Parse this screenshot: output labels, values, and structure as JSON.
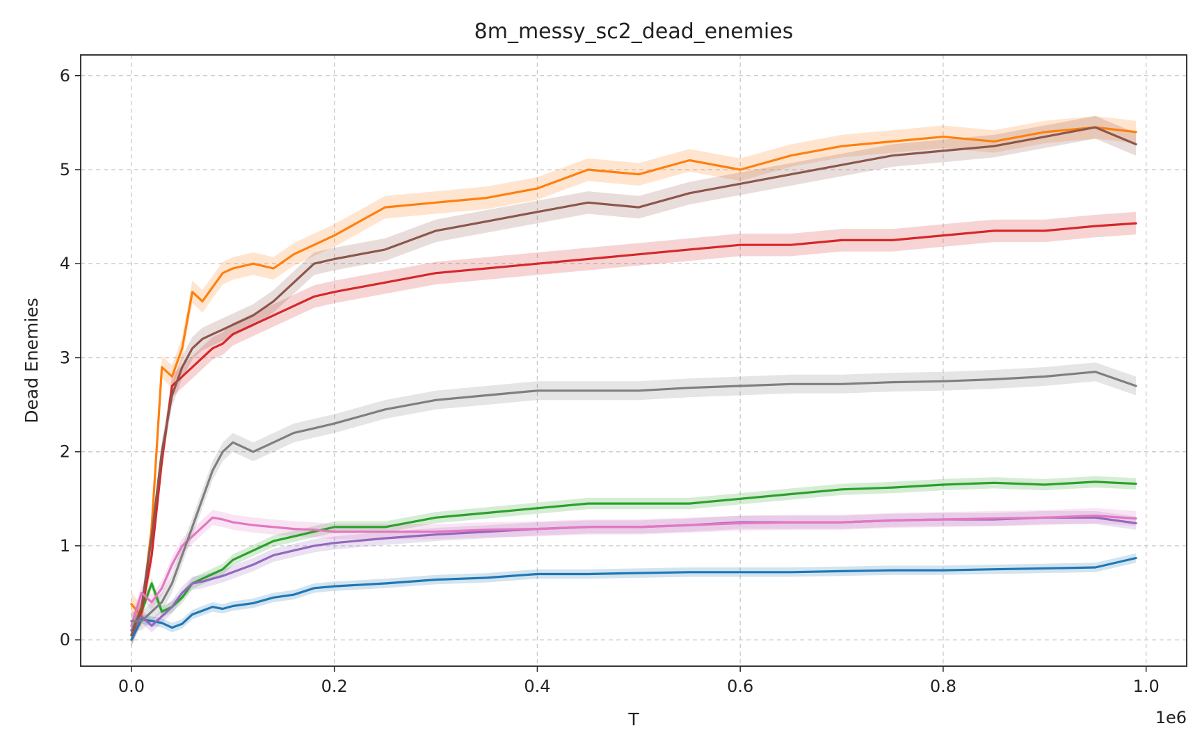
{
  "chart_data": {
    "type": "line",
    "title": "8m_messy_sc2_dead_enemies",
    "xlabel": "T",
    "ylabel": "Dead Enemies",
    "x_offset_text": "1e6",
    "xlim": [
      -0.05,
      1.04
    ],
    "ylim": [
      -0.28,
      6.22
    ],
    "xticks": [
      0.0,
      0.2,
      0.4,
      0.6,
      0.8,
      1.0
    ],
    "xtick_labels": [
      "0.0",
      "0.2",
      "0.4",
      "0.6",
      "0.8",
      "1.0"
    ],
    "yticks": [
      0,
      1,
      2,
      3,
      4,
      5,
      6
    ],
    "ytick_labels": [
      "0",
      "1",
      "2",
      "3",
      "4",
      "5",
      "6"
    ],
    "grid": true,
    "x_unit": 1000000,
    "x": [
      0,
      10000,
      20000,
      30000,
      40000,
      50000,
      60000,
      70000,
      80000,
      90000,
      100000,
      120000,
      140000,
      160000,
      180000,
      200000,
      250000,
      300000,
      350000,
      400000,
      450000,
      500000,
      550000,
      600000,
      650000,
      700000,
      750000,
      800000,
      850000,
      900000,
      950000,
      990000
    ],
    "series": [
      {
        "color": "#1f77b4",
        "values": [
          0.0,
          0.22,
          0.2,
          0.18,
          0.13,
          0.17,
          0.27,
          0.31,
          0.35,
          0.33,
          0.36,
          0.39,
          0.45,
          0.48,
          0.55,
          0.57,
          0.6,
          0.64,
          0.66,
          0.7,
          0.7,
          0.71,
          0.72,
          0.72,
          0.72,
          0.73,
          0.74,
          0.74,
          0.75,
          0.76,
          0.77,
          0.87
        ],
        "band": 0.05
      },
      {
        "color": "#ff7f0e",
        "values": [
          0.38,
          0.25,
          1.2,
          2.9,
          2.8,
          3.1,
          3.7,
          3.6,
          3.75,
          3.9,
          3.95,
          4.0,
          3.95,
          4.1,
          4.2,
          4.3,
          4.6,
          4.65,
          4.7,
          4.8,
          5.0,
          4.95,
          5.1,
          5.0,
          5.15,
          5.25,
          5.3,
          5.35,
          5.3,
          5.4,
          5.45,
          5.4
        ],
        "band": 0.12
      },
      {
        "color": "#2ca02c",
        "values": [
          0.1,
          0.3,
          0.6,
          0.3,
          0.35,
          0.45,
          0.6,
          0.65,
          0.7,
          0.75,
          0.85,
          0.95,
          1.05,
          1.1,
          1.15,
          1.2,
          1.2,
          1.3,
          1.35,
          1.4,
          1.45,
          1.45,
          1.45,
          1.5,
          1.55,
          1.6,
          1.62,
          1.65,
          1.67,
          1.65,
          1.68,
          1.66
        ],
        "band": 0.06
      },
      {
        "color": "#d62728",
        "values": [
          0.05,
          0.3,
          0.9,
          1.9,
          2.7,
          2.8,
          2.9,
          3.0,
          3.1,
          3.15,
          3.25,
          3.35,
          3.45,
          3.55,
          3.65,
          3.7,
          3.8,
          3.9,
          3.95,
          4.0,
          4.05,
          4.1,
          4.15,
          4.2,
          4.2,
          4.25,
          4.25,
          4.3,
          4.35,
          4.35,
          4.4,
          4.43
        ],
        "band": 0.12
      },
      {
        "color": "#9467bd",
        "values": [
          0.1,
          0.25,
          0.15,
          0.25,
          0.35,
          0.5,
          0.6,
          0.62,
          0.65,
          0.68,
          0.72,
          0.8,
          0.9,
          0.95,
          1.0,
          1.03,
          1.08,
          1.12,
          1.15,
          1.18,
          1.2,
          1.2,
          1.22,
          1.25,
          1.25,
          1.25,
          1.27,
          1.28,
          1.28,
          1.3,
          1.3,
          1.24
        ],
        "band": 0.07
      },
      {
        "color": "#8c564b",
        "values": [
          0.05,
          0.35,
          1.1,
          2.0,
          2.6,
          2.9,
          3.1,
          3.2,
          3.25,
          3.3,
          3.35,
          3.45,
          3.6,
          3.8,
          4.0,
          4.05,
          4.15,
          4.35,
          4.45,
          4.55,
          4.65,
          4.6,
          4.75,
          4.85,
          4.95,
          5.05,
          5.15,
          5.2,
          5.25,
          5.35,
          5.45,
          5.27
        ],
        "band": 0.12
      },
      {
        "color": "#e377c2",
        "values": [
          0.15,
          0.5,
          0.4,
          0.55,
          0.8,
          1.0,
          1.1,
          1.2,
          1.3,
          1.28,
          1.25,
          1.22,
          1.2,
          1.18,
          1.17,
          1.15,
          1.15,
          1.15,
          1.17,
          1.18,
          1.2,
          1.2,
          1.22,
          1.24,
          1.25,
          1.25,
          1.27,
          1.28,
          1.29,
          1.3,
          1.32,
          1.29
        ],
        "band": 0.08
      },
      {
        "color": "#7f7f7f",
        "values": [
          0.2,
          0.2,
          0.3,
          0.4,
          0.6,
          0.9,
          1.2,
          1.5,
          1.8,
          2.0,
          2.1,
          2.0,
          2.1,
          2.2,
          2.25,
          2.3,
          2.45,
          2.55,
          2.6,
          2.65,
          2.65,
          2.65,
          2.68,
          2.7,
          2.72,
          2.72,
          2.74,
          2.75,
          2.77,
          2.8,
          2.85,
          2.7
        ],
        "band": 0.1
      }
    ]
  }
}
